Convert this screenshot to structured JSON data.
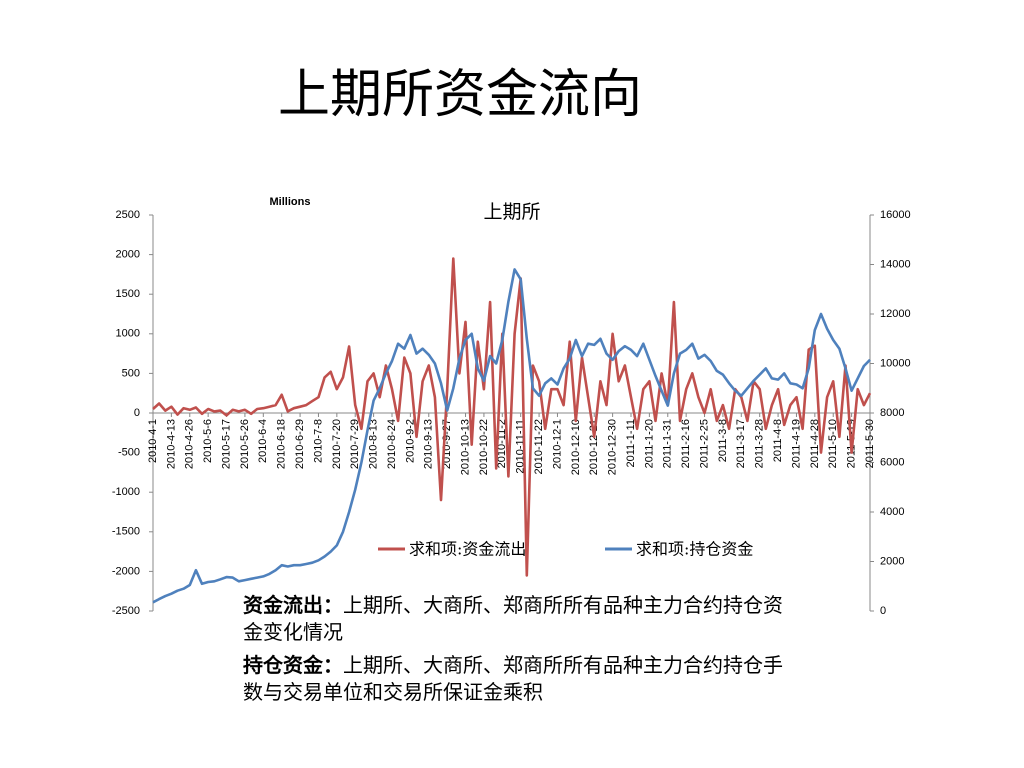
{
  "title": "上期所资金流向",
  "chart_data": {
    "type": "line",
    "title": "上期所",
    "unit_label": "Millions",
    "categories": [
      "2010-4-1",
      null,
      null,
      "2010-4-13",
      null,
      null,
      "2010-4-26",
      null,
      null,
      "2010-5-6",
      null,
      null,
      "2010-5-17",
      null,
      null,
      "2010-5-26",
      null,
      null,
      "2010-6-4",
      null,
      null,
      "2010-6-18",
      null,
      null,
      "2010-6-29",
      null,
      null,
      "2010-7-8",
      null,
      null,
      "2010-7-20",
      null,
      null,
      "2010-7-29",
      null,
      null,
      "2010-8-13",
      null,
      null,
      "2010-8-24",
      null,
      null,
      "2010-9-2",
      null,
      null,
      "2010-9-13",
      null,
      null,
      "2010-9-27",
      null,
      null,
      "2010-10-13",
      null,
      null,
      "2010-10-22",
      null,
      null,
      "2010-11-2",
      null,
      null,
      "2010-11-11",
      null,
      null,
      "2010-11-22",
      null,
      null,
      "2010-12-1",
      null,
      null,
      "2010-12-10",
      null,
      null,
      "2010-12-21",
      null,
      null,
      "2010-12-30",
      null,
      null,
      "2011-1-11",
      null,
      null,
      "2011-1-20",
      null,
      null,
      "2011-1-31",
      null,
      null,
      "2011-2-16",
      null,
      null,
      "2011-2-25",
      null,
      null,
      "2011-3-8",
      null,
      null,
      "2011-3-17",
      null,
      null,
      "2011-3-28",
      null,
      null,
      "2011-4-8",
      null,
      null,
      "2011-4-19",
      null,
      null,
      "2011-4-28",
      null,
      null,
      "2011-5-10",
      null,
      null,
      "2011-5-19",
      null,
      null,
      "2011-5-30"
    ],
    "series": [
      {
        "name": "求和项:资金流出",
        "color": "#c0504d",
        "axis": "y",
        "values": [
          50,
          120,
          30,
          80,
          -20,
          60,
          40,
          70,
          -10,
          50,
          20,
          30,
          -30,
          40,
          20,
          40,
          -10,
          50,
          60,
          80,
          100,
          230,
          20,
          60,
          80,
          100,
          150,
          200,
          450,
          520,
          300,
          450,
          840,
          100,
          -200,
          400,
          500,
          200,
          600,
          300,
          -100,
          700,
          500,
          -300,
          400,
          600,
          200,
          -1100,
          300,
          1950,
          500,
          1150,
          -400,
          900,
          300,
          1400,
          -700,
          1000,
          -800,
          1000,
          1700,
          -2050,
          600,
          400,
          -200,
          300,
          300,
          100,
          900,
          -100,
          700,
          200,
          -300,
          400,
          100,
          1000,
          400,
          600,
          200,
          -200,
          300,
          400,
          -100,
          500,
          100,
          1400,
          -100,
          300,
          500,
          200,
          0,
          300,
          -100,
          100,
          -200,
          300,
          200,
          -100,
          400,
          300,
          -200,
          100,
          300,
          -150,
          100,
          200,
          -200,
          800,
          850,
          -500,
          200,
          400,
          -300,
          600,
          -500,
          300,
          100,
          250
        ]
      },
      {
        "name": "求和项:持仓资金",
        "color": "#4f81bd",
        "axis": "y2",
        "values": [
          350,
          480,
          600,
          700,
          820,
          900,
          1050,
          1650,
          1100,
          1170,
          1200,
          1280,
          1370,
          1350,
          1200,
          1250,
          1300,
          1350,
          1400,
          1500,
          1650,
          1850,
          1800,
          1850,
          1850,
          1900,
          1950,
          2050,
          2200,
          2400,
          2650,
          3200,
          4000,
          4900,
          6000,
          7300,
          8500,
          9000,
          9600,
          10100,
          10800,
          10600,
          11150,
          10400,
          10600,
          10350,
          10000,
          9200,
          8100,
          9000,
          10200,
          10950,
          11200,
          9800,
          9300,
          10300,
          10000,
          10950,
          12500,
          13800,
          13400,
          11000,
          9000,
          8700,
          9200,
          9400,
          9150,
          9800,
          10200,
          10950,
          10300,
          10800,
          10750,
          11000,
          10400,
          10150,
          10500,
          10700,
          10550,
          10300,
          10800,
          10150,
          9500,
          8900,
          8300,
          9600,
          10400,
          10550,
          10800,
          10200,
          10350,
          10100,
          9700,
          9550,
          9200,
          8900,
          8700,
          9000,
          9300,
          9550,
          9800,
          9400,
          9350,
          9600,
          9200,
          9150,
          9000,
          9800,
          11350,
          12000,
          11400,
          10950,
          10600,
          9800,
          8900,
          9400,
          9900,
          10150
        ]
      }
    ],
    "ylim": [
      -2500,
      2500
    ],
    "yticks": [
      -2500,
      -2000,
      -1500,
      -1000,
      -500,
      0,
      500,
      1000,
      1500,
      2000,
      2500
    ],
    "y2lim": [
      0,
      16000
    ],
    "y2ticks": [
      0,
      2000,
      4000,
      6000,
      8000,
      10000,
      12000,
      14000,
      16000
    ],
    "legend": "bottom"
  },
  "notes": [
    {
      "term": "资金流出：",
      "text": "上期所、大商所、郑商所所有品种主力合约持仓资金变化情况"
    },
    {
      "term": "持仓资金：",
      "text": "上期所、大商所、郑商所所有品种主力合约持仓手数与交易单位和交易所保证金乘积"
    }
  ]
}
